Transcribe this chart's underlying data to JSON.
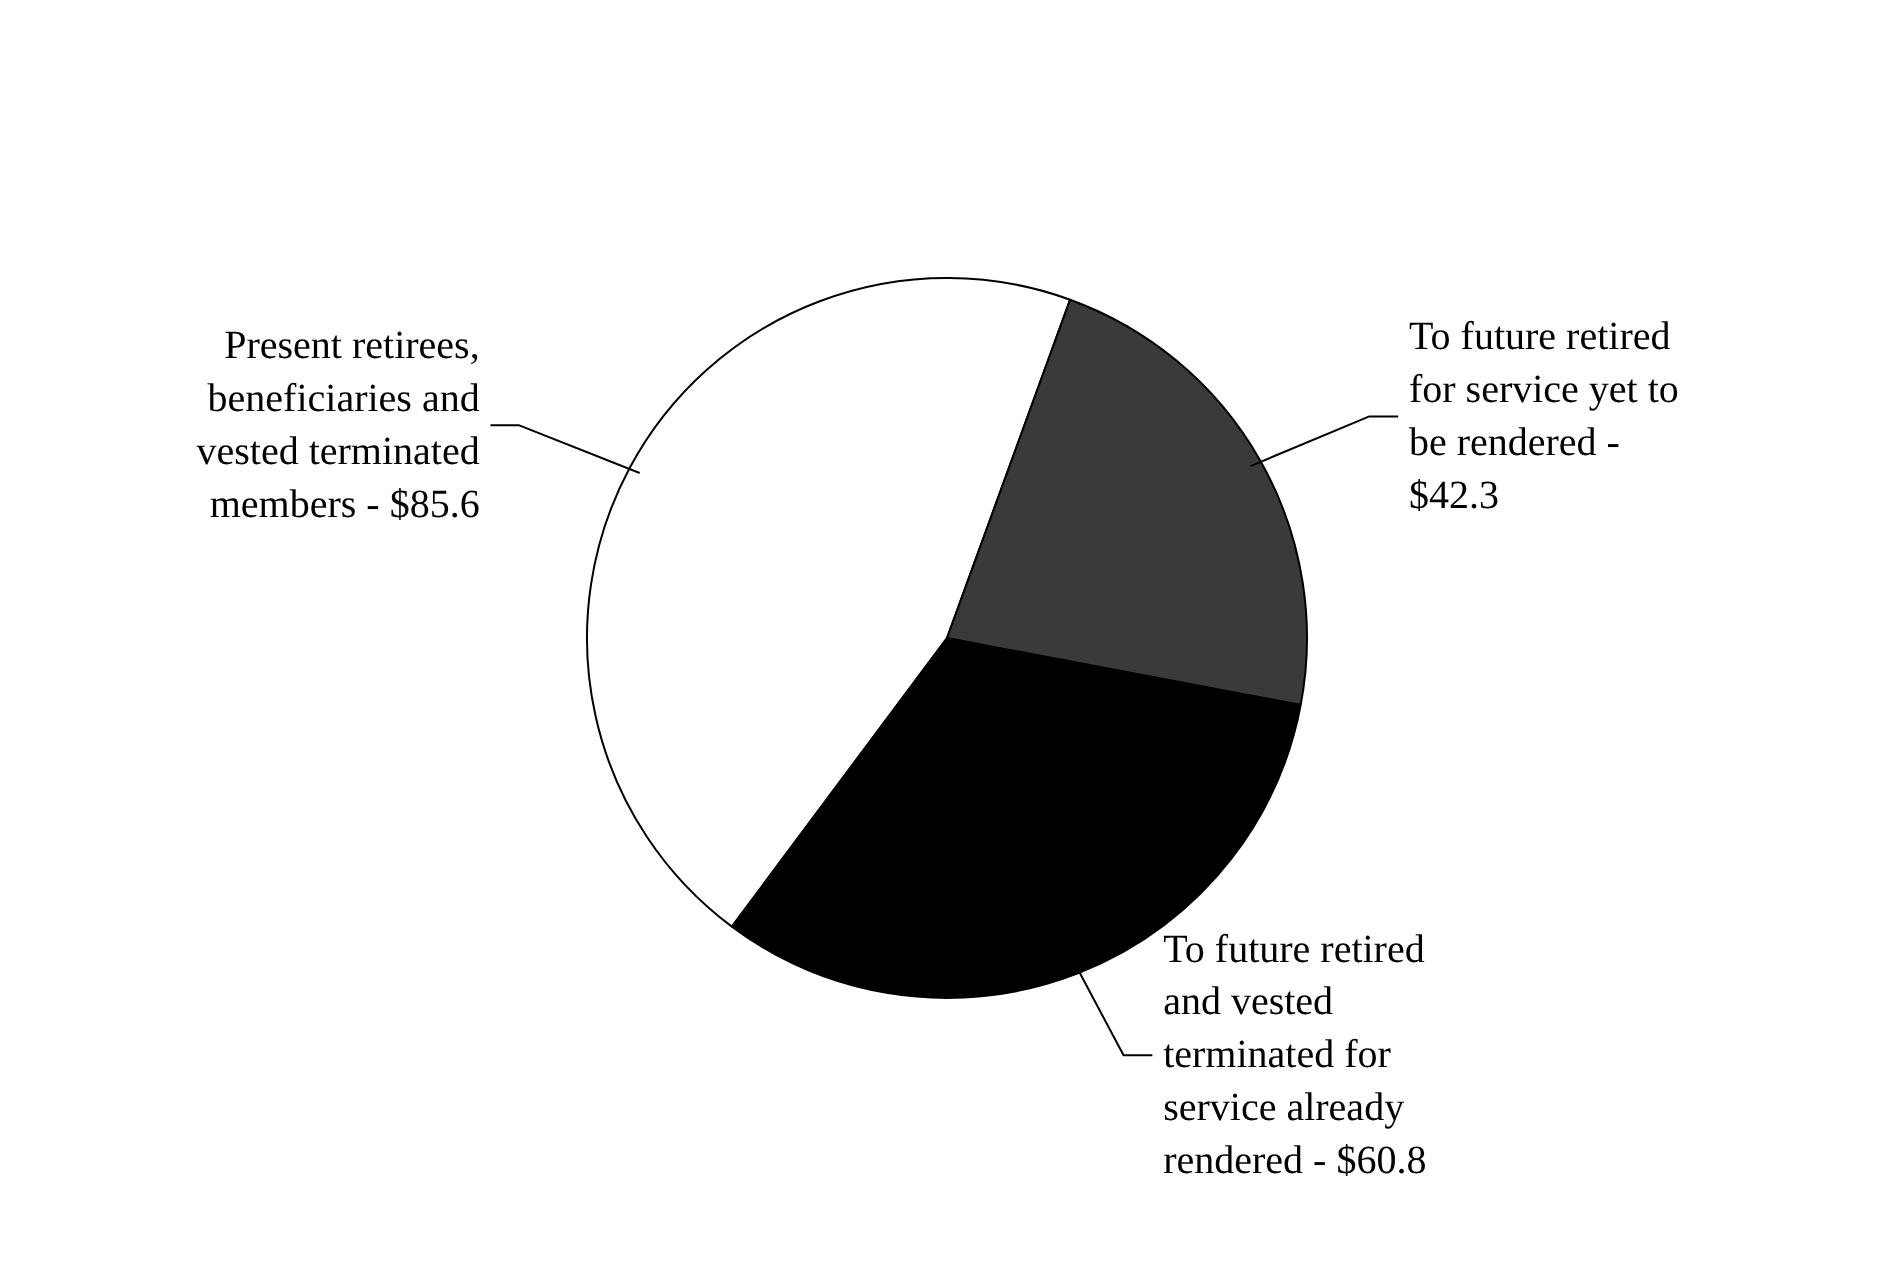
{
  "chart_data": {
    "type": "pie",
    "categories": [
      "Present retirees, beneficiaries and vested terminated members -",
      "To future retired and vested terminated for service already rendered -",
      "To future retired for service yet to be rendered -"
    ],
    "values": [
      85.6,
      60.8,
      42.3
    ],
    "value_labels": [
      "$85.6",
      "$60.8",
      "$42.3"
    ],
    "colors": [
      "#ffffff",
      "#000000",
      "#3a3a3a"
    ]
  }
}
